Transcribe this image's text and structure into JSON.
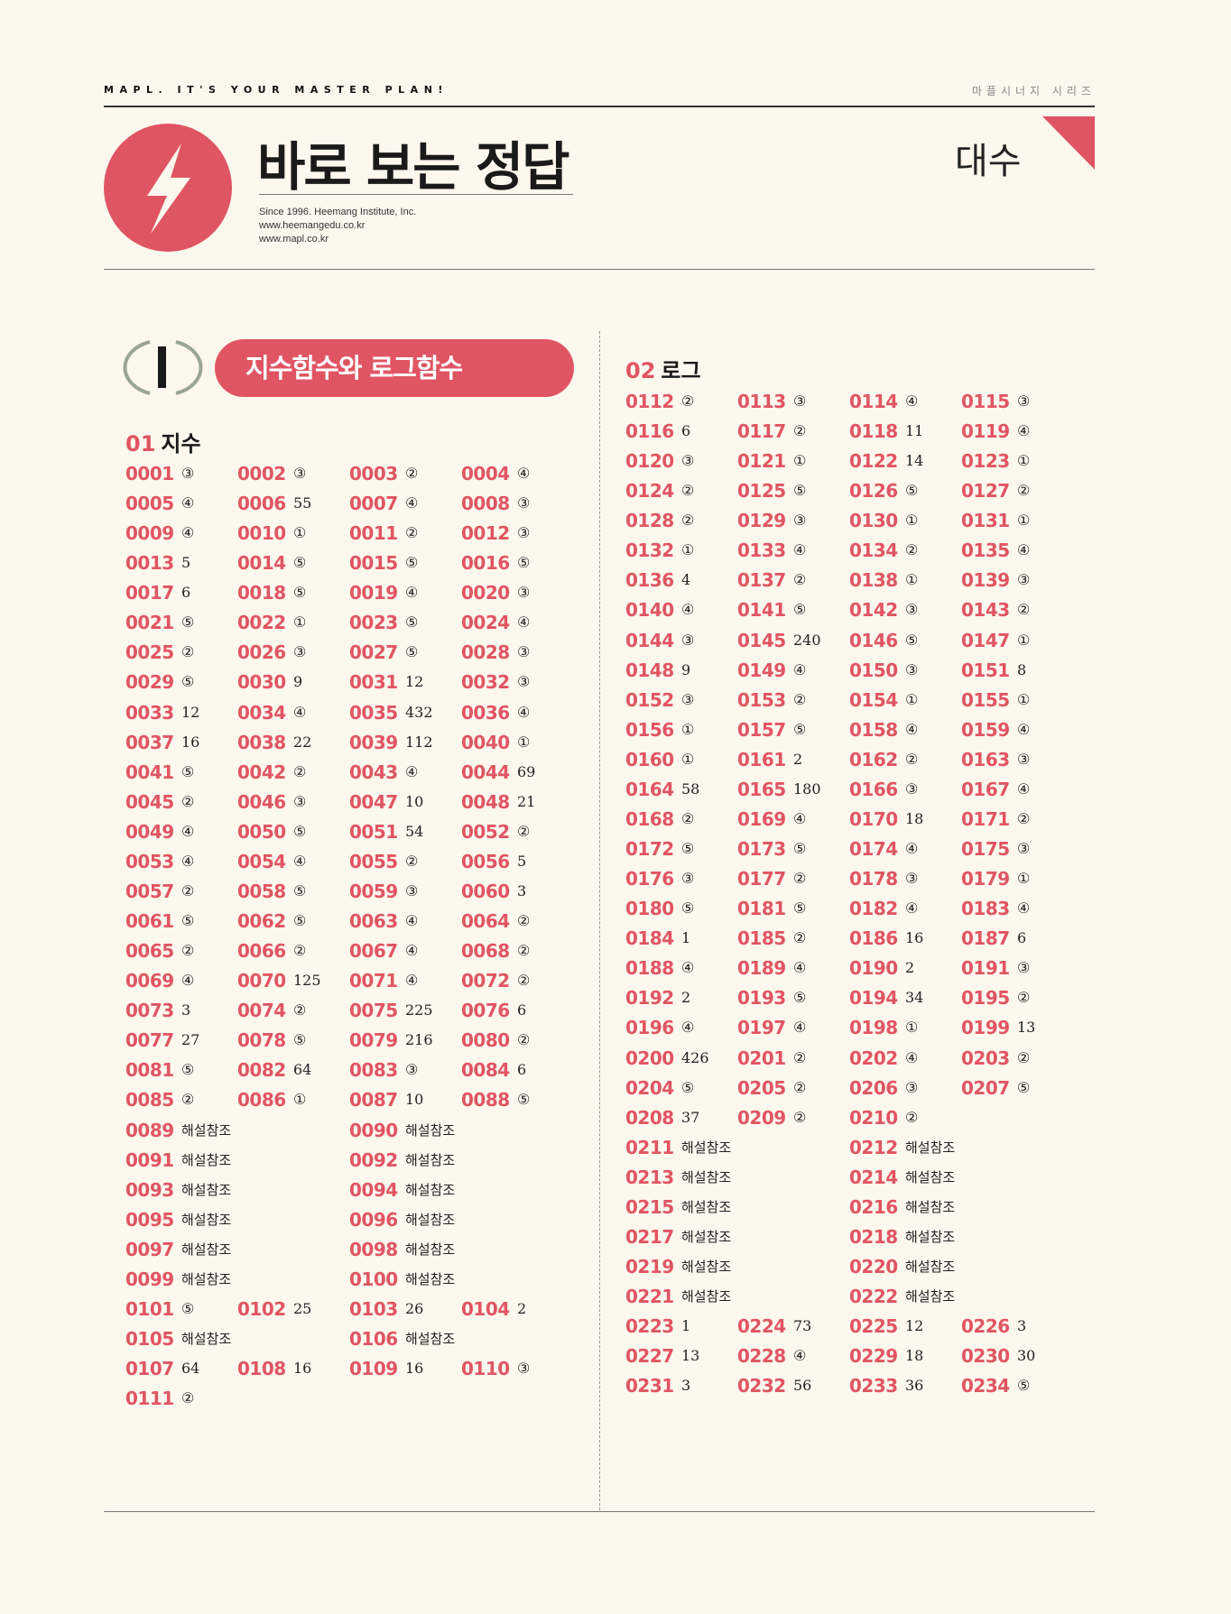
{
  "header": {
    "tagline": "MAPL. IT'S YOUR MASTER PLAN!",
    "series": "마플시너지 시리즈",
    "title": "바로 보는 정답",
    "info": [
      "Since 1996. Heemang Institute, Inc.",
      "www.heemangedu.co.kr",
      "www.mapl.co.kr"
    ],
    "subject": "대수",
    "logo_icon": "lightning-bolt-icon"
  },
  "colors": {
    "accent": "#e05563",
    "background": "#fdf8ee",
    "chapter_ring": "#9aa593"
  },
  "chapter": {
    "numeral": "I",
    "title": "지수함수와 로그함수"
  },
  "left": {
    "section_num": "01",
    "section_title": "지수",
    "rows": [
      [
        [
          "0001",
          "③"
        ],
        [
          "0002",
          "③"
        ],
        [
          "0003",
          "②"
        ],
        [
          "0004",
          "④"
        ]
      ],
      [
        [
          "0005",
          "④"
        ],
        [
          "0006",
          "55"
        ],
        [
          "0007",
          "④"
        ],
        [
          "0008",
          "③"
        ]
      ],
      [
        [
          "0009",
          "④"
        ],
        [
          "0010",
          "①"
        ],
        [
          "0011",
          "②"
        ],
        [
          "0012",
          "③"
        ]
      ],
      [
        [
          "0013",
          "5"
        ],
        [
          "0014",
          "⑤"
        ],
        [
          "0015",
          "⑤"
        ],
        [
          "0016",
          "⑤"
        ]
      ],
      [
        [
          "0017",
          "6"
        ],
        [
          "0018",
          "⑤"
        ],
        [
          "0019",
          "④"
        ],
        [
          "0020",
          "③"
        ]
      ],
      [
        [
          "0021",
          "⑤"
        ],
        [
          "0022",
          "①"
        ],
        [
          "0023",
          "⑤"
        ],
        [
          "0024",
          "④"
        ]
      ],
      [
        [
          "0025",
          "②"
        ],
        [
          "0026",
          "③"
        ],
        [
          "0027",
          "⑤"
        ],
        [
          "0028",
          "③"
        ]
      ],
      [
        [
          "0029",
          "⑤"
        ],
        [
          "0030",
          "9"
        ],
        [
          "0031",
          "12"
        ],
        [
          "0032",
          "③"
        ]
      ],
      [
        [
          "0033",
          "12"
        ],
        [
          "0034",
          "④"
        ],
        [
          "0035",
          "432"
        ],
        [
          "0036",
          "④"
        ]
      ],
      [
        [
          "0037",
          "16"
        ],
        [
          "0038",
          "22"
        ],
        [
          "0039",
          "112"
        ],
        [
          "0040",
          "①"
        ]
      ],
      [
        [
          "0041",
          "⑤"
        ],
        [
          "0042",
          "②"
        ],
        [
          "0043",
          "④"
        ],
        [
          "0044",
          "69"
        ]
      ],
      [
        [
          "0045",
          "②"
        ],
        [
          "0046",
          "③"
        ],
        [
          "0047",
          "10"
        ],
        [
          "0048",
          "21"
        ]
      ],
      [
        [
          "0049",
          "④"
        ],
        [
          "0050",
          "⑤"
        ],
        [
          "0051",
          "54"
        ],
        [
          "0052",
          "②"
        ]
      ],
      [
        [
          "0053",
          "④"
        ],
        [
          "0054",
          "④"
        ],
        [
          "0055",
          "②"
        ],
        [
          "0056",
          "5"
        ]
      ],
      [
        [
          "0057",
          "②"
        ],
        [
          "0058",
          "⑤"
        ],
        [
          "0059",
          "③"
        ],
        [
          "0060",
          "3"
        ]
      ],
      [
        [
          "0061",
          "⑤"
        ],
        [
          "0062",
          "⑤"
        ],
        [
          "0063",
          "④"
        ],
        [
          "0064",
          "②"
        ]
      ],
      [
        [
          "0065",
          "②"
        ],
        [
          "0066",
          "②"
        ],
        [
          "0067",
          "④"
        ],
        [
          "0068",
          "②"
        ]
      ],
      [
        [
          "0069",
          "④"
        ],
        [
          "0070",
          "125"
        ],
        [
          "0071",
          "④"
        ],
        [
          "0072",
          "②"
        ]
      ],
      [
        [
          "0073",
          "3"
        ],
        [
          "0074",
          "②"
        ],
        [
          "0075",
          "225"
        ],
        [
          "0076",
          "6"
        ]
      ],
      [
        [
          "0077",
          "27"
        ],
        [
          "0078",
          "⑤"
        ],
        [
          "0079",
          "216"
        ],
        [
          "0080",
          "②"
        ]
      ],
      [
        [
          "0081",
          "⑤"
        ],
        [
          "0082",
          "64"
        ],
        [
          "0083",
          "③"
        ],
        [
          "0084",
          "6"
        ]
      ],
      [
        [
          "0085",
          "②"
        ],
        [
          "0086",
          "①"
        ],
        [
          "0087",
          "10"
        ],
        [
          "0088",
          "⑤"
        ]
      ],
      [
        [
          "0089",
          "해설참조"
        ],
        null,
        [
          "0090",
          "해설참조"
        ],
        null
      ],
      [
        [
          "0091",
          "해설참조"
        ],
        null,
        [
          "0092",
          "해설참조"
        ],
        null
      ],
      [
        [
          "0093",
          "해설참조"
        ],
        null,
        [
          "0094",
          "해설참조"
        ],
        null
      ],
      [
        [
          "0095",
          "해설참조"
        ],
        null,
        [
          "0096",
          "해설참조"
        ],
        null
      ],
      [
        [
          "0097",
          "해설참조"
        ],
        null,
        [
          "0098",
          "해설참조"
        ],
        null
      ],
      [
        [
          "0099",
          "해설참조"
        ],
        null,
        [
          "0100",
          "해설참조"
        ],
        null
      ],
      [
        [
          "0101",
          "⑤"
        ],
        [
          "0102",
          "25"
        ],
        [
          "0103",
          "26"
        ],
        [
          "0104",
          "2"
        ]
      ],
      [
        [
          "0105",
          "해설참조"
        ],
        null,
        [
          "0106",
          "해설참조"
        ],
        null
      ],
      [
        [
          "0107",
          "64"
        ],
        [
          "0108",
          "16"
        ],
        [
          "0109",
          "16"
        ],
        [
          "0110",
          "③"
        ]
      ],
      [
        [
          "0111",
          "②"
        ],
        null,
        null,
        null
      ]
    ]
  },
  "right": {
    "section_num": "02",
    "section_title": "로그",
    "rows": [
      [
        [
          "0112",
          "②"
        ],
        [
          "0113",
          "③"
        ],
        [
          "0114",
          "④"
        ],
        [
          "0115",
          "③"
        ]
      ],
      [
        [
          "0116",
          "6"
        ],
        [
          "0117",
          "②"
        ],
        [
          "0118",
          "11"
        ],
        [
          "0119",
          "④"
        ]
      ],
      [
        [
          "0120",
          "③"
        ],
        [
          "0121",
          "①"
        ],
        [
          "0122",
          "14"
        ],
        [
          "0123",
          "①"
        ]
      ],
      [
        [
          "0124",
          "②"
        ],
        [
          "0125",
          "⑤"
        ],
        [
          "0126",
          "⑤"
        ],
        [
          "0127",
          "②"
        ]
      ],
      [
        [
          "0128",
          "②"
        ],
        [
          "0129",
          "③"
        ],
        [
          "0130",
          "①"
        ],
        [
          "0131",
          "①"
        ]
      ],
      [
        [
          "0132",
          "①"
        ],
        [
          "0133",
          "④"
        ],
        [
          "0134",
          "②"
        ],
        [
          "0135",
          "④"
        ]
      ],
      [
        [
          "0136",
          "4"
        ],
        [
          "0137",
          "②"
        ],
        [
          "0138",
          "①"
        ],
        [
          "0139",
          "③"
        ]
      ],
      [
        [
          "0140",
          "④"
        ],
        [
          "0141",
          "⑤"
        ],
        [
          "0142",
          "③"
        ],
        [
          "0143",
          "②"
        ]
      ],
      [
        [
          "0144",
          "③"
        ],
        [
          "0145",
          "240"
        ],
        [
          "0146",
          "⑤"
        ],
        [
          "0147",
          "①"
        ]
      ],
      [
        [
          "0148",
          "9"
        ],
        [
          "0149",
          "④"
        ],
        [
          "0150",
          "③"
        ],
        [
          "0151",
          "8"
        ]
      ],
      [
        [
          "0152",
          "③"
        ],
        [
          "0153",
          "②"
        ],
        [
          "0154",
          "①"
        ],
        [
          "0155",
          "①"
        ]
      ],
      [
        [
          "0156",
          "①"
        ],
        [
          "0157",
          "⑤"
        ],
        [
          "0158",
          "④"
        ],
        [
          "0159",
          "④"
        ]
      ],
      [
        [
          "0160",
          "①"
        ],
        [
          "0161",
          "2"
        ],
        [
          "0162",
          "②"
        ],
        [
          "0163",
          "③"
        ]
      ],
      [
        [
          "0164",
          "58"
        ],
        [
          "0165",
          "180"
        ],
        [
          "0166",
          "③"
        ],
        [
          "0167",
          "④"
        ]
      ],
      [
        [
          "0168",
          "②"
        ],
        [
          "0169",
          "④"
        ],
        [
          "0170",
          "18"
        ],
        [
          "0171",
          "②"
        ]
      ],
      [
        [
          "0172",
          "⑤"
        ],
        [
          "0173",
          "⑤"
        ],
        [
          "0174",
          "④"
        ],
        [
          "0175",
          "③"
        ]
      ],
      [
        [
          "0176",
          "③"
        ],
        [
          "0177",
          "②"
        ],
        [
          "0178",
          "③"
        ],
        [
          "0179",
          "①"
        ]
      ],
      [
        [
          "0180",
          "⑤"
        ],
        [
          "0181",
          "⑤"
        ],
        [
          "0182",
          "④"
        ],
        [
          "0183",
          "④"
        ]
      ],
      [
        [
          "0184",
          "1"
        ],
        [
          "0185",
          "②"
        ],
        [
          "0186",
          "16"
        ],
        [
          "0187",
          "6"
        ]
      ],
      [
        [
          "0188",
          "④"
        ],
        [
          "0189",
          "④"
        ],
        [
          "0190",
          "2"
        ],
        [
          "0191",
          "③"
        ]
      ],
      [
        [
          "0192",
          "2"
        ],
        [
          "0193",
          "⑤"
        ],
        [
          "0194",
          "34"
        ],
        [
          "0195",
          "②"
        ]
      ],
      [
        [
          "0196",
          "④"
        ],
        [
          "0197",
          "④"
        ],
        [
          "0198",
          "①"
        ],
        [
          "0199",
          "13"
        ]
      ],
      [
        [
          "0200",
          "426"
        ],
        [
          "0201",
          "②"
        ],
        [
          "0202",
          "④"
        ],
        [
          "0203",
          "②"
        ]
      ],
      [
        [
          "0204",
          "⑤"
        ],
        [
          "0205",
          "②"
        ],
        [
          "0206",
          "③"
        ],
        [
          "0207",
          "⑤"
        ]
      ],
      [
        [
          "0208",
          "37"
        ],
        [
          "0209",
          "②"
        ],
        [
          "0210",
          "②"
        ],
        null
      ],
      [
        [
          "0211",
          "해설참조"
        ],
        null,
        [
          "0212",
          "해설참조"
        ],
        null
      ],
      [
        [
          "0213",
          "해설참조"
        ],
        null,
        [
          "0214",
          "해설참조"
        ],
        null
      ],
      [
        [
          "0215",
          "해설참조"
        ],
        null,
        [
          "0216",
          "해설참조"
        ],
        null
      ],
      [
        [
          "0217",
          "해설참조"
        ],
        null,
        [
          "0218",
          "해설참조"
        ],
        null
      ],
      [
        [
          "0219",
          "해설참조"
        ],
        null,
        [
          "0220",
          "해설참조"
        ],
        null
      ],
      [
        [
          "0221",
          "해설참조"
        ],
        null,
        [
          "0222",
          "해설참조"
        ],
        null
      ],
      [
        [
          "0223",
          "1"
        ],
        [
          "0224",
          "73"
        ],
        [
          "0225",
          "12"
        ],
        [
          "0226",
          "3"
        ]
      ],
      [
        [
          "0227",
          "13"
        ],
        [
          "0228",
          "④"
        ],
        [
          "0229",
          "18"
        ],
        [
          "0230",
          "30"
        ]
      ],
      [
        [
          "0231",
          "3"
        ],
        [
          "0232",
          "56"
        ],
        [
          "0233",
          "36"
        ],
        [
          "0234",
          "⑤"
        ]
      ]
    ]
  }
}
